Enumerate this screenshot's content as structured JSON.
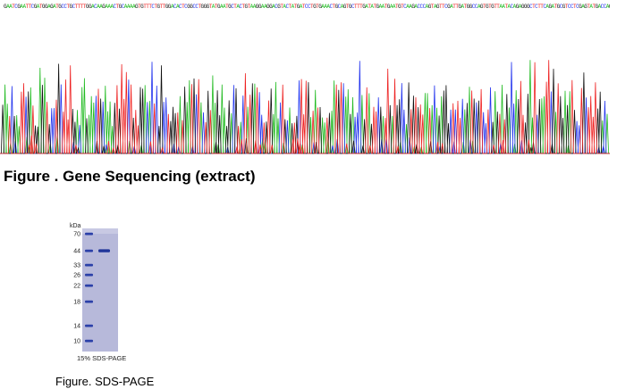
{
  "sequence": {
    "bases": "GAATCGAATTCGATGGAGATGCCTGCTTTTGGACAAGAAACTGCAAAAGTGTTTCTGTTGGACACTCGGCCTGGGTATGAATGCTACTGTAAGGAAGGACGTACTATGATCCTGTGAAACTGCAGTGCTTTGATATGAATGAATGTCAAGACCCAGTAGTTCGATTGATGGCCAGTGTGTTAATACAGAGGGCTCTTCAGATGCGTCCTCGAGTATGACCAGTTG",
    "base_colors": {
      "A": "#22bb22",
      "C": "#2233ee",
      "G": "#111111",
      "T": "#ee2222"
    }
  },
  "figure1": {
    "caption": "Figure . Gene Sequencing (extract)"
  },
  "gel": {
    "unit_label": "kDa",
    "markers": [
      "70",
      "44",
      "33",
      "26",
      "22",
      "18",
      "14",
      "10"
    ],
    "sample_band_kda": 44,
    "gel_color": "#b7b9da",
    "marker_band_color": "#2a3fa8",
    "label": "15% SDS-PAGE"
  },
  "figure2": {
    "caption": "Figure. SDS-PAGE"
  }
}
